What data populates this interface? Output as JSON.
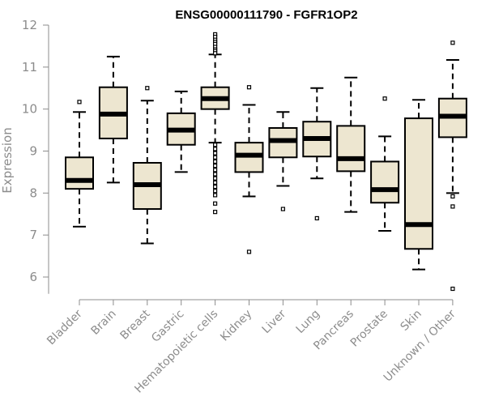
{
  "chart_data": {
    "type": "boxplot",
    "title": "ENSG00000111790 - FGFR1OP2",
    "xlabel": "",
    "ylabel": "Expression",
    "ylim": [
      5.6,
      12.0
    ],
    "yticks": [
      6,
      7,
      8,
      9,
      10,
      11,
      12
    ],
    "box_fill": "#ede6d0",
    "box_stroke": "#000000",
    "categories": [
      "Bladder",
      "Brain",
      "Breast",
      "Gastric",
      "Hematopoietic cells",
      "Kidney",
      "Liver",
      "Lung",
      "Pancreas",
      "Prostate",
      "Skin",
      "Unknown / Other"
    ],
    "boxes": [
      {
        "label": "Bladder",
        "lower_whisker": 7.2,
        "q1": 8.1,
        "median": 8.3,
        "q3": 8.85,
        "upper_whisker": 9.93,
        "outliers": [
          10.17
        ]
      },
      {
        "label": "Brain",
        "lower_whisker": 8.25,
        "q1": 9.3,
        "median": 9.88,
        "q3": 10.52,
        "upper_whisker": 11.25,
        "outliers": []
      },
      {
        "label": "Breast",
        "lower_whisker": 6.8,
        "q1": 7.62,
        "median": 8.2,
        "q3": 8.72,
        "upper_whisker": 10.2,
        "outliers": [
          10.5
        ]
      },
      {
        "label": "Gastric",
        "lower_whisker": 8.5,
        "q1": 9.15,
        "median": 9.5,
        "q3": 9.9,
        "upper_whisker": 10.42,
        "outliers": []
      },
      {
        "label": "Hematopoietic cells",
        "lower_whisker": 9.2,
        "q1": 10.0,
        "median": 10.25,
        "q3": 10.52,
        "upper_whisker": 11.3,
        "outliers": [
          11.78,
          11.72,
          11.65,
          11.6,
          11.55,
          11.48,
          11.42,
          11.38,
          11.33,
          9.15,
          9.05,
          8.95,
          8.85,
          8.75,
          8.65,
          8.55,
          8.45,
          8.35,
          8.25,
          8.15,
          8.05,
          7.95,
          7.75,
          7.55
        ]
      },
      {
        "label": "Kidney",
        "lower_whisker": 7.92,
        "q1": 8.5,
        "median": 8.9,
        "q3": 9.2,
        "upper_whisker": 10.1,
        "outliers": [
          10.52,
          6.6
        ]
      },
      {
        "label": "Liver",
        "lower_whisker": 8.17,
        "q1": 8.85,
        "median": 9.25,
        "q3": 9.55,
        "upper_whisker": 9.93,
        "outliers": [
          7.62
        ]
      },
      {
        "label": "Lung",
        "lower_whisker": 8.35,
        "q1": 8.87,
        "median": 9.3,
        "q3": 9.7,
        "upper_whisker": 10.5,
        "outliers": [
          7.4
        ]
      },
      {
        "label": "Pancreas",
        "lower_whisker": 7.55,
        "q1": 8.52,
        "median": 8.82,
        "q3": 9.6,
        "upper_whisker": 10.75,
        "outliers": []
      },
      {
        "label": "Prostate",
        "lower_whisker": 7.1,
        "q1": 7.77,
        "median": 8.08,
        "q3": 8.75,
        "upper_whisker": 9.35,
        "outliers": [
          10.25
        ]
      },
      {
        "label": "Skin",
        "lower_whisker": 6.18,
        "q1": 6.67,
        "median": 7.25,
        "q3": 9.78,
        "upper_whisker": 10.22,
        "outliers": []
      },
      {
        "label": "Unknown / Other",
        "lower_whisker": 8.0,
        "q1": 9.33,
        "median": 9.83,
        "q3": 10.25,
        "upper_whisker": 11.17,
        "outliers": [
          11.58,
          7.92,
          7.68,
          5.72
        ]
      }
    ]
  }
}
